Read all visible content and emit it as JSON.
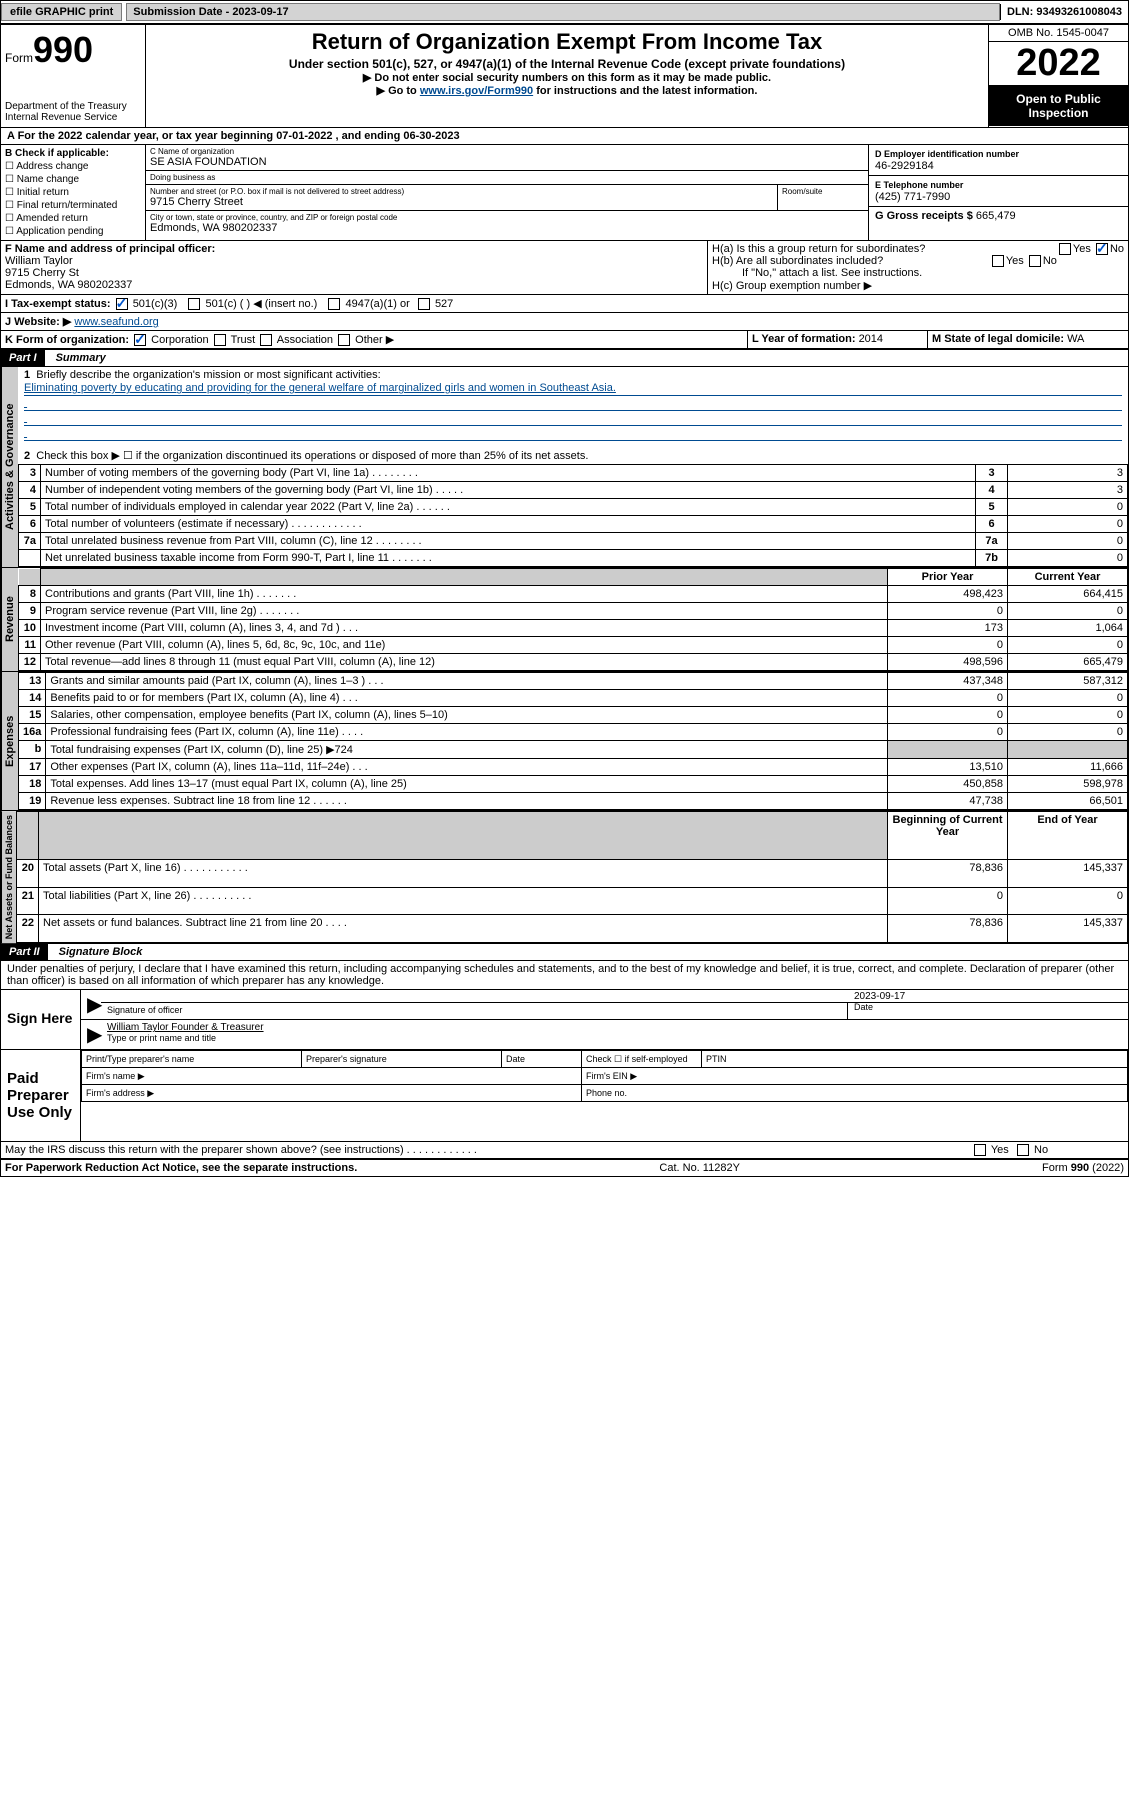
{
  "topbar": {
    "efile": "efile GRAPHIC print",
    "sub_date": "Submission Date - 2023-09-17",
    "dln": "DLN: 93493261008043"
  },
  "header": {
    "form_word": "Form",
    "form_no": "990",
    "dept": "Department of the Treasury\nInternal Revenue Service",
    "title": "Return of Organization Exempt From Income Tax",
    "sub1": "Under section 501(c), 527, or 4947(a)(1) of the Internal Revenue Code (except private foundations)",
    "sub2": "▶ Do not enter social security numbers on this form as it may be made public.",
    "goto_pre": "▶ Go to ",
    "goto_link": "www.irs.gov/Form990",
    "goto_post": " for instructions and the latest information.",
    "omb": "OMB No. 1545-0047",
    "year": "2022",
    "open_pub": "Open to Public Inspection"
  },
  "cal_year": {
    "text": "A For the 2022 calendar year, or tax year beginning 07-01-2022    , and ending 06-30-2023"
  },
  "sec_b": {
    "b_label": "B Check if applicable:",
    "opts": [
      "Address change",
      "Name change",
      "Initial return",
      "Final return/terminated",
      "Amended return",
      "Application pending"
    ],
    "c_label": "C Name of organization",
    "c_name": "SE ASIA FOUNDATION",
    "dba_label": "Doing business as",
    "dba": "",
    "street_label": "Number and street (or P.O. box if mail is not delivered to street address)",
    "street": "9715 Cherry Street",
    "room_label": "Room/suite",
    "city_label": "City or town, state or province, country, and ZIP or foreign postal code",
    "city": "Edmonds, WA   980202337",
    "d_label": "D Employer identification number",
    "d_ein": "46-2929184",
    "e_label": "E Telephone number",
    "e_phone": "(425) 771-7990",
    "g_label": "G Gross receipts $ ",
    "g_val": "665,479"
  },
  "sec_f": {
    "f_label": "F  Name and address of principal officer:",
    "f_name": "William Taylor",
    "f_addr1": "9715 Cherry St",
    "f_addr2": "Edmonds, WA   980202337"
  },
  "sec_h": {
    "ha": "H(a)  Is this a group return for subordinates?",
    "ha_no": true,
    "hb": "H(b)  Are all subordinates included?",
    "hb_note": "If \"No,\" attach a list. See instructions.",
    "hc": "H(c)  Group exemption number ▶"
  },
  "sec_i": {
    "label": "I    Tax-exempt status:",
    "opts": [
      "501(c)(3)",
      "501(c) (   ) ◀ (insert no.)",
      "4947(a)(1) or",
      "527"
    ],
    "checked": 0
  },
  "sec_j": {
    "label": "J   Website: ▶ ",
    "url": "www.seafund.org"
  },
  "sec_k": {
    "label": "K Form of organization:",
    "opts": [
      "Corporation",
      "Trust",
      "Association",
      "Other ▶"
    ],
    "checked": 0
  },
  "sec_l": {
    "label": "L Year of formation: ",
    "val": "2014"
  },
  "sec_m": {
    "label": "M State of legal domicile: ",
    "val": "WA"
  },
  "part1": {
    "hdr": "Part I",
    "title": "Summary",
    "q1": "Briefly describe the organization's mission or most significant activities:",
    "mission": "Eliminating poverty by educating and providing for the general welfare of marginalized girls and women in Southeast Asia.",
    "q2": "Check this box ▶ ☐  if the organization discontinued its operations or disposed of more than 25% of its net assets.",
    "rows_gov": [
      {
        "n": "3",
        "desc": "Number of voting members of the governing body (Part VI, line 1a)   .    .    .    .    .    .    .    .",
        "box": "3",
        "val": "3"
      },
      {
        "n": "4",
        "desc": "Number of independent voting members of the governing body (Part VI, line 1b)   .    .    .    .    .",
        "box": "4",
        "val": "3"
      },
      {
        "n": "5",
        "desc": "Total number of individuals employed in calendar year 2022 (Part V, line 2a)   .    .    .    .    .    .",
        "box": "5",
        "val": "0"
      },
      {
        "n": "6",
        "desc": "Total number of volunteers (estimate if necessary)   .    .    .    .    .    .    .    .    .    .    .    .",
        "box": "6",
        "val": "0"
      },
      {
        "n": "7a",
        "desc": "Total unrelated business revenue from Part VIII, column (C), line 12   .    .    .    .    .    .    .    .",
        "box": "7a",
        "val": "0"
      },
      {
        "n": "",
        "desc": "Net unrelated business taxable income from Form 990-T, Part I, line 11   .    .    .    .    .    .    .",
        "box": "7b",
        "val": "0"
      }
    ],
    "col_prior": "Prior Year",
    "col_curr": "Current Year",
    "rows_rev": [
      {
        "n": "8",
        "desc": "Contributions and grants (Part VIII, line 1h)   .    .    .    .    .    .    .",
        "p": "498,423",
        "c": "664,415"
      },
      {
        "n": "9",
        "desc": "Program service revenue (Part VIII, line 2g)   .    .    .    .    .    .    .",
        "p": "0",
        "c": "0"
      },
      {
        "n": "10",
        "desc": "Investment income (Part VIII, column (A), lines 3, 4, and 7d )   .    .    .",
        "p": "173",
        "c": "1,064"
      },
      {
        "n": "11",
        "desc": "Other revenue (Part VIII, column (A), lines 5, 6d, 8c, 9c, 10c, and 11e)",
        "p": "0",
        "c": "0"
      },
      {
        "n": "12",
        "desc": "Total revenue—add lines 8 through 11 (must equal Part VIII, column (A), line 12)",
        "p": "498,596",
        "c": "665,479"
      }
    ],
    "rows_exp": [
      {
        "n": "13",
        "desc": "Grants and similar amounts paid (Part IX, column (A), lines 1–3 )   .    .    .",
        "p": "437,348",
        "c": "587,312"
      },
      {
        "n": "14",
        "desc": "Benefits paid to or for members (Part IX, column (A), line 4)   .    .    .",
        "p": "0",
        "c": "0"
      },
      {
        "n": "15",
        "desc": "Salaries, other compensation, employee benefits (Part IX, column (A), lines 5–10)",
        "p": "0",
        "c": "0"
      },
      {
        "n": "16a",
        "desc": "Professional fundraising fees (Part IX, column (A), line 11e)   .    .    .    .",
        "p": "0",
        "c": "0"
      },
      {
        "n": "b",
        "desc": "Total fundraising expenses (Part IX, column (D), line 25) ▶724",
        "p": "",
        "c": "",
        "shade": true
      },
      {
        "n": "17",
        "desc": "Other expenses (Part IX, column (A), lines 11a–11d, 11f–24e)   .    .    .",
        "p": "13,510",
        "c": "11,666"
      },
      {
        "n": "18",
        "desc": "Total expenses. Add lines 13–17 (must equal Part IX, column (A), line 25)",
        "p": "450,858",
        "c": "598,978"
      },
      {
        "n": "19",
        "desc": "Revenue less expenses. Subtract line 18 from line 12   .    .    .    .    .    .",
        "p": "47,738",
        "c": "66,501"
      }
    ],
    "col_beg": "Beginning of Current Year",
    "col_end": "End of Year",
    "rows_net": [
      {
        "n": "20",
        "desc": "Total assets (Part X, line 16)   .    .    .    .    .    .    .    .    .    .    .",
        "p": "78,836",
        "c": "145,337"
      },
      {
        "n": "21",
        "desc": "Total liabilities (Part X, line 26)   .    .    .    .    .    .    .    .    .    .",
        "p": "0",
        "c": "0"
      },
      {
        "n": "22",
        "desc": "Net assets or fund balances. Subtract line 21 from line 20   .    .    .    .",
        "p": "78,836",
        "c": "145,337"
      }
    ],
    "vert_gov": "Activities & Governance",
    "vert_rev": "Revenue",
    "vert_exp": "Expenses",
    "vert_net": "Net Assets or Fund Balances"
  },
  "part2": {
    "hdr": "Part II",
    "title": "Signature Block",
    "decl": "Under penalties of perjury, I declare that I have examined this return, including accompanying schedules and statements, and to the best of my knowledge and belief, it is true, correct, and complete. Declaration of preparer (other than officer) is based on all information of which preparer has any knowledge.",
    "sign_here": "Sign Here",
    "sig_off": "Signature of officer",
    "sig_date_label": "Date",
    "sig_date": "2023-09-17",
    "sig_name": "William Taylor  Founder & Treasurer",
    "sig_name_lbl": "Type or print name and title",
    "paid_prep": "Paid Preparer Use Only",
    "pp_name_lbl": "Print/Type preparer's name",
    "pp_sig_lbl": "Preparer's signature",
    "pp_date_lbl": "Date",
    "pp_self": "Check ☐ if self-employed",
    "pp_ptin": "PTIN",
    "pp_firm_name": "Firm's name   ▶",
    "pp_firm_ein": "Firm's EIN ▶",
    "pp_firm_addr": "Firm's address ▶",
    "pp_phone": "Phone no.",
    "discuss": "May the IRS discuss this return with the preparer shown above? (see instructions)   .    .    .    .    .    .    .    .    .    .    .    .",
    "yes": "Yes",
    "no": "No"
  },
  "footer": {
    "left": "For Paperwork Reduction Act Notice, see the separate instructions.",
    "mid": "Cat. No. 11282Y",
    "right": "Form 990 (2022)"
  },
  "colors": {
    "link": "#004b91",
    "shade": "#cccccc",
    "black": "#000000",
    "white": "#ffffff",
    "check_blue": "#0055cc",
    "btn_gray": "#d3d3d3"
  }
}
